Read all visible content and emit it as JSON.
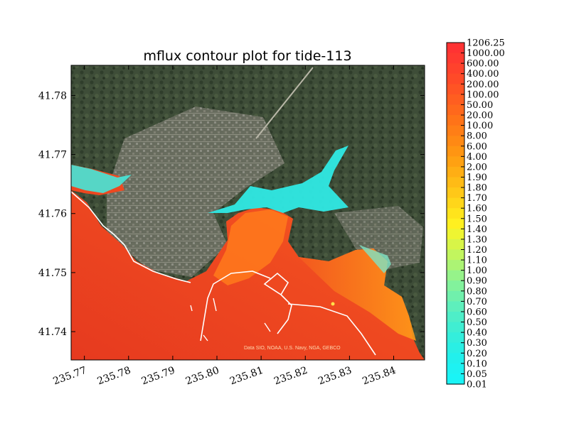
{
  "chart_data": {
    "type": "heatmap",
    "title": "mflux contour plot for tide-113",
    "xlabel": "",
    "ylabel": "",
    "xlim": [
      235.767,
      235.847
    ],
    "ylim": [
      41.7352,
      41.7851
    ],
    "x_ticks": [
      "235.77",
      "235.78",
      "235.79",
      "235.80",
      "235.81",
      "235.82",
      "235.83",
      "235.84"
    ],
    "x_tick_values": [
      235.77,
      235.78,
      235.79,
      235.8,
      235.81,
      235.82,
      235.83,
      235.84
    ],
    "y_ticks": [
      "41.74",
      "41.75",
      "41.76",
      "41.77",
      "41.78"
    ],
    "y_tick_values": [
      41.74,
      41.75,
      41.76,
      41.77,
      41.78
    ],
    "colorbar": {
      "levels": [
        "1206.25",
        "1000.00",
        "600.00",
        "400.00",
        "200.00",
        "100.00",
        "50.00",
        "20.00",
        "10.00",
        "8.00",
        "6.00",
        "4.00",
        "2.00",
        "1.90",
        "1.80",
        "1.70",
        "1.60",
        "1.50",
        "1.40",
        "1.30",
        "1.20",
        "1.10",
        "1.00",
        "0.90",
        "0.80",
        "0.70",
        "0.60",
        "0.50",
        "0.40",
        "0.30",
        "0.20",
        "0.10",
        "0.05",
        "0.01"
      ],
      "colors": [
        "#ff3333",
        "#ff3a30",
        "#ff422c",
        "#ff4a28",
        "#ff5424",
        "#ff5e20",
        "#ff681c",
        "#ff7318",
        "#ff7e16",
        "#ff8914",
        "#ff9512",
        "#ffa112",
        "#ffae14",
        "#ffbb16",
        "#ffc818",
        "#ffd61a",
        "#ffe41c",
        "#fff020",
        "#eef532",
        "#d8f548",
        "#c2f55e",
        "#acf474",
        "#96f38a",
        "#82f29c",
        "#70f0ac",
        "#5eefbc",
        "#4eeec8",
        "#40eed2",
        "#34eedc",
        "#2aefe4",
        "#22f0ec",
        "#1ef2f2",
        "#1af4f6"
      ]
    },
    "credit": "Data SIO, NOAA, U.S. Navy, NGA, GEBCO",
    "colors": {
      "deep": "#ec3b1f",
      "shallow": "#ff7a1a",
      "channel": "#ffa21c",
      "flat": "#2fe9e4",
      "land": "#3e4d38",
      "urban": "#7b7a70"
    }
  }
}
